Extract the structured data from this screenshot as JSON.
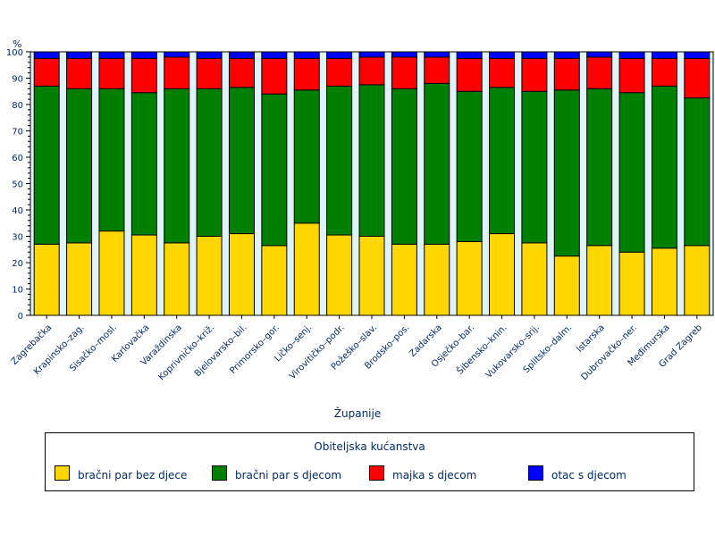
{
  "chart_data": {
    "type": "bar",
    "stacked": true,
    "y_unit": "%",
    "xlabel": "Županije",
    "ylim": [
      0,
      100
    ],
    "yticks": [
      0,
      10,
      20,
      30,
      40,
      50,
      60,
      70,
      80,
      90,
      100
    ],
    "categories": [
      "Zagrebačka",
      "Krapinsko–zag.",
      "Sisačko–mosl.",
      "Karlovačka",
      "Varaždinska",
      "Koprivničko–križ.",
      "Bjelovarsko–bil.",
      "Primorsko–gor.",
      "Ličko–senj.",
      "Virovitičko–podr.",
      "Požeško–slav.",
      "Brodsko–pos.",
      "Zadarska",
      "Osječko–bar.",
      "Šibensko–knin.",
      "Vukovarsko–srij.",
      "Splitsko–dalm.",
      "Istarska",
      "Dubrovačko–ner.",
      "Međimurska",
      "Grad Zagreb"
    ],
    "legend_title": "Obiteljska kućanstva",
    "legend_position": "bottom",
    "series": [
      {
        "name": "bračni par bez djece",
        "color": "#FFD700",
        "values": [
          27,
          27.5,
          32,
          30.5,
          27.5,
          30,
          31,
          26.5,
          35,
          30.5,
          30,
          27,
          27,
          28,
          31,
          27.5,
          22.5,
          26.5,
          24,
          25.5,
          26.5
        ]
      },
      {
        "name": "bračni par s djecom",
        "color": "#008000",
        "values": [
          60,
          58.5,
          54,
          54,
          58.5,
          56,
          55.5,
          57.5,
          50.5,
          56.5,
          57.5,
          59,
          61,
          57,
          55.5,
          57.5,
          63,
          59.5,
          60.5,
          61.5,
          56
        ]
      },
      {
        "name": "majka s djecom",
        "color": "#FF0000",
        "values": [
          10.5,
          11.5,
          11.5,
          13,
          12,
          11.5,
          11,
          13.5,
          12,
          10.5,
          10.5,
          12,
          10,
          12.5,
          11,
          12.5,
          12,
          12,
          13,
          10.5,
          15
        ]
      },
      {
        "name": "otac s djecom",
        "color": "#0000FF",
        "values": [
          2.5,
          2.5,
          2.5,
          2.5,
          2,
          2.5,
          2.5,
          2.5,
          2.5,
          2.5,
          2,
          2,
          2,
          2.5,
          2.5,
          2.5,
          2.5,
          2,
          2.5,
          2.5,
          2.5
        ]
      }
    ]
  }
}
